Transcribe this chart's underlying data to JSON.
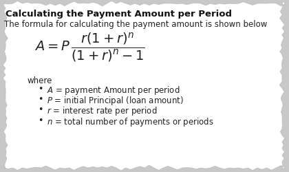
{
  "title": "Calculating the Payment Amount per Period",
  "subtitle": "The formula for calculating the payment amount is shown below",
  "where_label": "where",
  "bullet_items": [
    "$A$ = payment Amount per period",
    "$P$ = initial Principal (loan amount)",
    "$r$ = interest rate per period",
    "$n$ = total number of payments or periods"
  ],
  "bg_color": "#c8c8c8",
  "paper_color": "#ffffff",
  "title_color": "#111111",
  "text_color": "#222222",
  "title_fontsize": 9.5,
  "subtitle_fontsize": 8.5,
  "formula_fontsize": 14,
  "bullet_fontsize": 8.5,
  "where_fontsize": 8.5
}
